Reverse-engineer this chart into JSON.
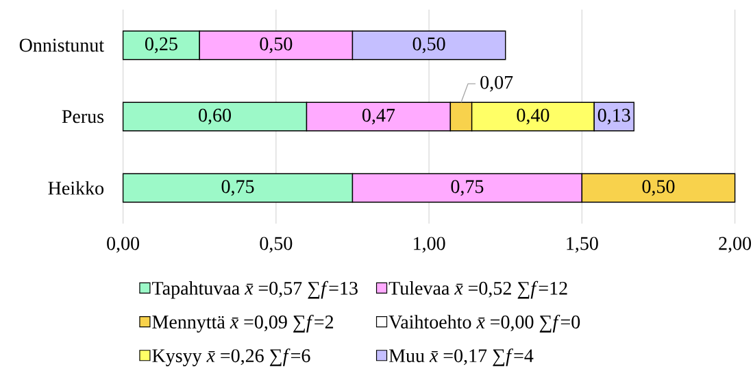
{
  "chart_data": {
    "type": "bar",
    "orientation": "horizontal",
    "stacked": true,
    "categories": [
      "Onnistunut",
      "Perus",
      "Heikko"
    ],
    "xlim": [
      0,
      2
    ],
    "xticks": [
      {
        "value": 0,
        "label": "0,00"
      },
      {
        "value": 0.5,
        "label": "0,50"
      },
      {
        "value": 1,
        "label": "1,00"
      },
      {
        "value": 1.5,
        "label": "1,50"
      },
      {
        "value": 2,
        "label": "2,00"
      }
    ],
    "grid": "x",
    "legend": "bottom",
    "series": [
      {
        "name": "Tapahtuvaa *x̄*=0,57 ∑*f*=13",
        "color": "#9cf9c8",
        "values": [
          0.25,
          0.6,
          0.75
        ],
        "value_labels": [
          "0,25",
          "0,60",
          "0,75"
        ]
      },
      {
        "name": "Tulevaa *x̄*=0,52 ∑*f*=12",
        "color": "#ffaaff",
        "values": [
          0.5,
          0.47,
          0.75
        ],
        "value_labels": [
          "0,50",
          "0,47",
          "0,75"
        ]
      },
      {
        "name": "Mennyttä *x̄*=0,09 ∑*f*=2",
        "color": "#f8d24c",
        "values": [
          null,
          0.07,
          0.5
        ],
        "value_labels": [
          null,
          "0,07",
          "0,50"
        ]
      },
      {
        "name": "Vaihtoehto *x̄*=0,00 ∑*f*=0",
        "color": "#ffffff",
        "values": [
          null,
          null,
          null
        ]
      },
      {
        "name": "Kysyy *x̄*=0,26 ∑*f*=6",
        "color": "#ffff66",
        "values": [
          null,
          0.4,
          null
        ],
        "value_labels": [
          null,
          "0,40",
          null
        ]
      },
      {
        "name": "Muu *x̄*=0,17 ∑*f*=4",
        "color": "#c5bfff",
        "values": [
          0.5,
          0.13,
          null
        ],
        "value_labels": [
          "0,50",
          "0,13",
          null
        ]
      }
    ]
  }
}
